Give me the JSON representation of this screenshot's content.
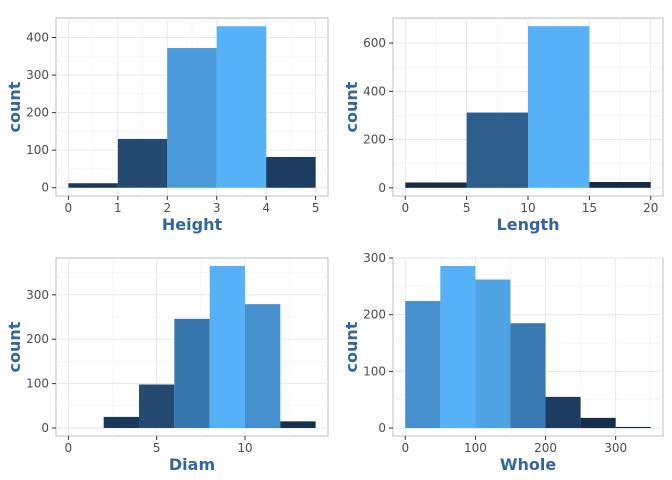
{
  "chart_data": [
    {
      "type": "bar",
      "xlabel": "Height",
      "ylabel": "count",
      "bins": [
        {
          "start": 0,
          "end": 1,
          "value": 12,
          "color": "#1b3a5c"
        },
        {
          "start": 1,
          "end": 2,
          "value": 130,
          "color": "#234a70"
        },
        {
          "start": 2,
          "end": 3,
          "value": 372,
          "color": "#4a9ad9"
        },
        {
          "start": 3,
          "end": 4,
          "value": 430,
          "color": "#56b1f7"
        },
        {
          "start": 4,
          "end": 5,
          "value": 82,
          "color": "#1d3d60"
        }
      ],
      "xlim": [
        -0.25,
        5.25
      ],
      "ylim": [
        -22,
        452
      ],
      "xticks": [
        0,
        1,
        2,
        3,
        4,
        5
      ],
      "yticks": [
        0,
        100,
        200,
        300,
        400
      ],
      "grid": true
    },
    {
      "type": "bar",
      "xlabel": "Length",
      "ylabel": "count",
      "bins": [
        {
          "start": 0,
          "end": 5,
          "value": 22,
          "color": "#132b43"
        },
        {
          "start": 5,
          "end": 10,
          "value": 312,
          "color": "#2d5e8c"
        },
        {
          "start": 10,
          "end": 15,
          "value": 670,
          "color": "#56b1f7"
        },
        {
          "start": 15,
          "end": 20,
          "value": 24,
          "color": "#132b43"
        }
      ],
      "xlim": [
        -1,
        21
      ],
      "ylim": [
        -34,
        704
      ],
      "xticks": [
        0,
        5,
        10,
        15,
        20
      ],
      "yticks": [
        0,
        200,
        400,
        600
      ],
      "grid": true
    },
    {
      "type": "bar",
      "xlabel": "Diam",
      "ylabel": "count",
      "bins": [
        {
          "start": 2,
          "end": 4,
          "value": 25,
          "color": "#1a3857"
        },
        {
          "start": 4,
          "end": 6,
          "value": 98,
          "color": "#244a71"
        },
        {
          "start": 6,
          "end": 8,
          "value": 246,
          "color": "#3877ae"
        },
        {
          "start": 8,
          "end": 10,
          "value": 365,
          "color": "#56b1f7"
        },
        {
          "start": 10,
          "end": 12,
          "value": 279,
          "color": "#4690cf"
        },
        {
          "start": 12,
          "end": 14,
          "value": 15,
          "color": "#17324f"
        }
      ],
      "xlim": [
        -0.7,
        14.7
      ],
      "ylim": [
        -18,
        383
      ],
      "xticks": [
        0,
        5,
        10
      ],
      "yticks": [
        0,
        100,
        200,
        300
      ],
      "grid": true
    },
    {
      "type": "bar",
      "xlabel": "Whole",
      "ylabel": "count",
      "bins": [
        {
          "start": 0,
          "end": 50,
          "value": 224,
          "color": "#4690cf"
        },
        {
          "start": 50,
          "end": 100,
          "value": 286,
          "color": "#56b1f7"
        },
        {
          "start": 100,
          "end": 150,
          "value": 262,
          "color": "#4fa3e3"
        },
        {
          "start": 150,
          "end": 200,
          "value": 185,
          "color": "#3a79b2"
        },
        {
          "start": 200,
          "end": 250,
          "value": 55,
          "color": "#1d3d60"
        },
        {
          "start": 250,
          "end": 300,
          "value": 18,
          "color": "#162f4a"
        },
        {
          "start": 300,
          "end": 350,
          "value": 2,
          "color": "#132b43"
        }
      ],
      "xlim": [
        -17.5,
        367.5
      ],
      "ylim": [
        -14,
        300
      ],
      "xticks": [
        0,
        100,
        200,
        300
      ],
      "yticks": [
        0,
        100,
        200,
        300
      ],
      "grid": true
    }
  ]
}
